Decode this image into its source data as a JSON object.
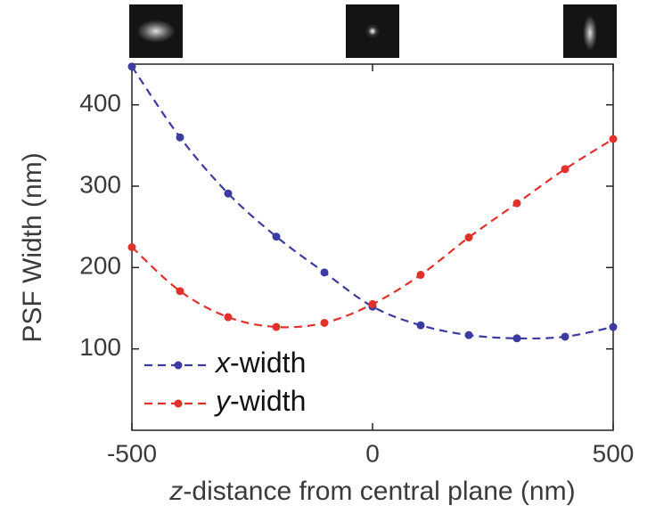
{
  "chart_data": {
    "type": "line",
    "x_label": "z-distance from central plane (nm)",
    "y_label": "PSF Width (nm)",
    "x": [
      -500,
      -400,
      -300,
      -200,
      -100,
      0,
      100,
      200,
      300,
      400,
      500
    ],
    "series": [
      {
        "name": "x-width",
        "color": "#3b3ba0",
        "values": [
          447,
          360,
          291,
          238,
          194,
          152,
          129,
          117,
          113,
          115,
          127
        ]
      },
      {
        "name": "y-width",
        "color": "#e0312b",
        "values": [
          225,
          171,
          139,
          127,
          132,
          155,
          191,
          237,
          279,
          321,
          358
        ]
      }
    ],
    "xlim": [
      -500,
      500
    ],
    "xticks": [
      -500,
      0,
      500
    ],
    "ylim": [
      0,
      450
    ],
    "yticks": [
      100,
      200,
      300,
      400
    ],
    "legend": "lower-left"
  }
}
